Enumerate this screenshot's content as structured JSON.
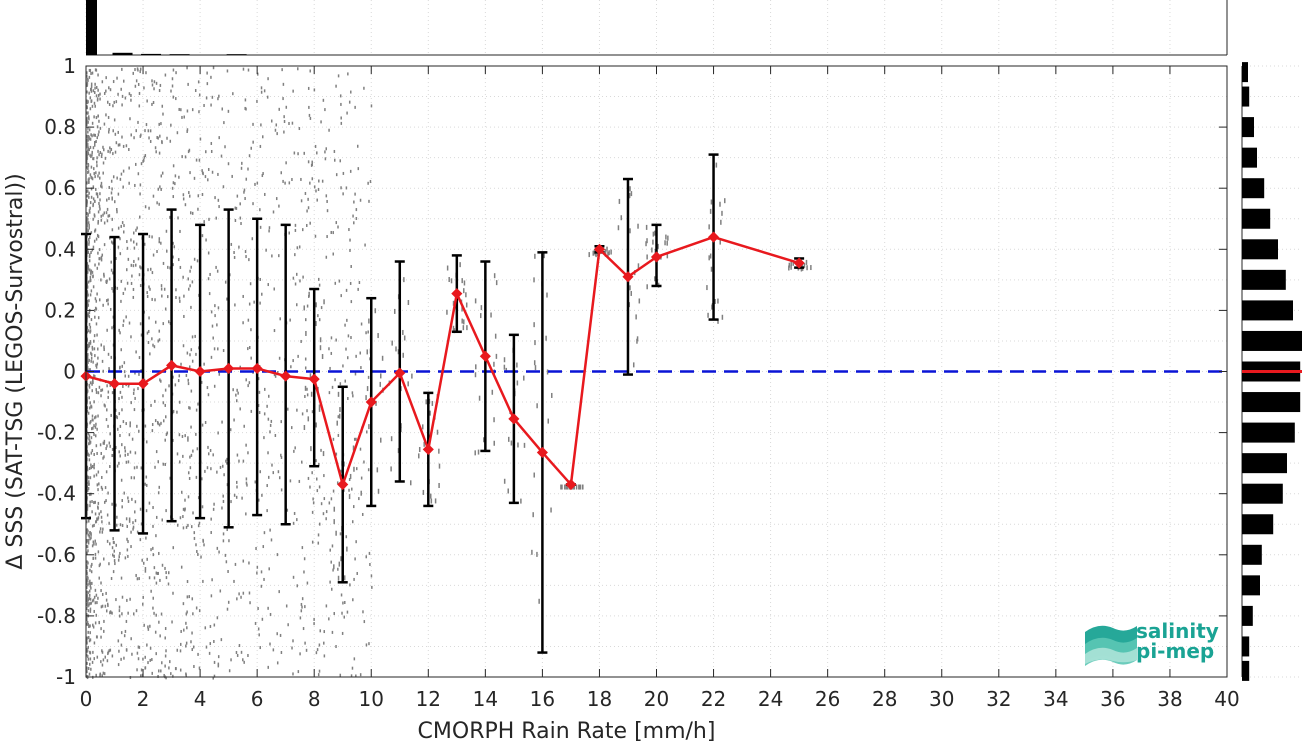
{
  "chart_data": {
    "type": "scatter",
    "xlabel": "CMORPH Rain Rate [mm/h]",
    "ylabel": "Δ SSS (SAT-TSG (LEGOS-Survostral))",
    "xlim": [
      0,
      40
    ],
    "ylim": [
      -1,
      1
    ],
    "x_ticks": [
      "0",
      "2",
      "4",
      "6",
      "8",
      "10",
      "12",
      "14",
      "16",
      "18",
      "20",
      "22",
      "24",
      "26",
      "28",
      "30",
      "32",
      "34",
      "36",
      "38",
      "40"
    ],
    "y_ticks": [
      "-1",
      "-0.8",
      "-0.6",
      "-0.4",
      "-0.2",
      "0",
      "0.2",
      "0.4",
      "0.6",
      "0.8",
      "1"
    ],
    "grid": true,
    "series": [
      {
        "kind": "binned-mean-with-error-bars",
        "color": "#e8191e",
        "error_bar_color": "#000000",
        "x": [
          0,
          1,
          2,
          3,
          4,
          5,
          6,
          7,
          8,
          9,
          10,
          11,
          12,
          13,
          14,
          15,
          16,
          17,
          18,
          19,
          20,
          22,
          25
        ],
        "y": [
          -0.015,
          -0.04,
          -0.04,
          0.02,
          0.0,
          0.01,
          0.01,
          -0.015,
          -0.025,
          -0.37,
          -0.1,
          -0.005,
          -0.255,
          0.255,
          0.05,
          -0.155,
          -0.265,
          -0.37,
          0.4,
          0.31,
          0.375,
          0.44,
          0.355
        ],
        "lower": [
          -0.48,
          -0.52,
          -0.53,
          -0.49,
          -0.48,
          -0.51,
          -0.47,
          -0.5,
          -0.31,
          -0.69,
          -0.44,
          -0.36,
          -0.44,
          0.13,
          -0.26,
          -0.43,
          -0.92,
          -0.37,
          0.39,
          -0.01,
          0.28,
          0.17,
          0.34
        ],
        "upper": [
          0.45,
          0.44,
          0.45,
          0.53,
          0.48,
          0.53,
          0.5,
          0.48,
          0.27,
          -0.05,
          0.24,
          0.36,
          -0.07,
          0.38,
          0.36,
          0.12,
          0.39,
          -0.37,
          0.41,
          0.63,
          0.48,
          0.71,
          0.37
        ]
      }
    ],
    "zero_reference": {
      "y": 0,
      "style": "dashed",
      "color": "#0a14d6"
    },
    "scatter_color": "#808080",
    "top_histogram": {
      "bins_x": [
        0,
        1,
        2,
        3,
        5
      ],
      "relative_heights": [
        1.0,
        0.04,
        0.02,
        0.015,
        0.015
      ]
    },
    "right_histogram": {
      "bins_y": [
        0.98,
        0.9,
        0.8,
        0.7,
        0.6,
        0.5,
        0.4,
        0.3,
        0.2,
        0.1,
        0.0,
        -0.1,
        -0.2,
        -0.3,
        -0.4,
        -0.5,
        -0.6,
        -0.7,
        -0.8,
        -0.9,
        -0.98
      ],
      "relative_widths": [
        0.1,
        0.12,
        0.2,
        0.25,
        0.37,
        0.47,
        0.6,
        0.73,
        0.85,
        1.0,
        0.97,
        0.97,
        0.88,
        0.75,
        0.68,
        0.52,
        0.33,
        0.3,
        0.18,
        0.12,
        0.12
      ],
      "mean_line_color": "#e8191e"
    },
    "legend": "none"
  },
  "logo": {
    "line1": "salinity",
    "line2": "pi-mep",
    "color": "#1aa394"
  }
}
